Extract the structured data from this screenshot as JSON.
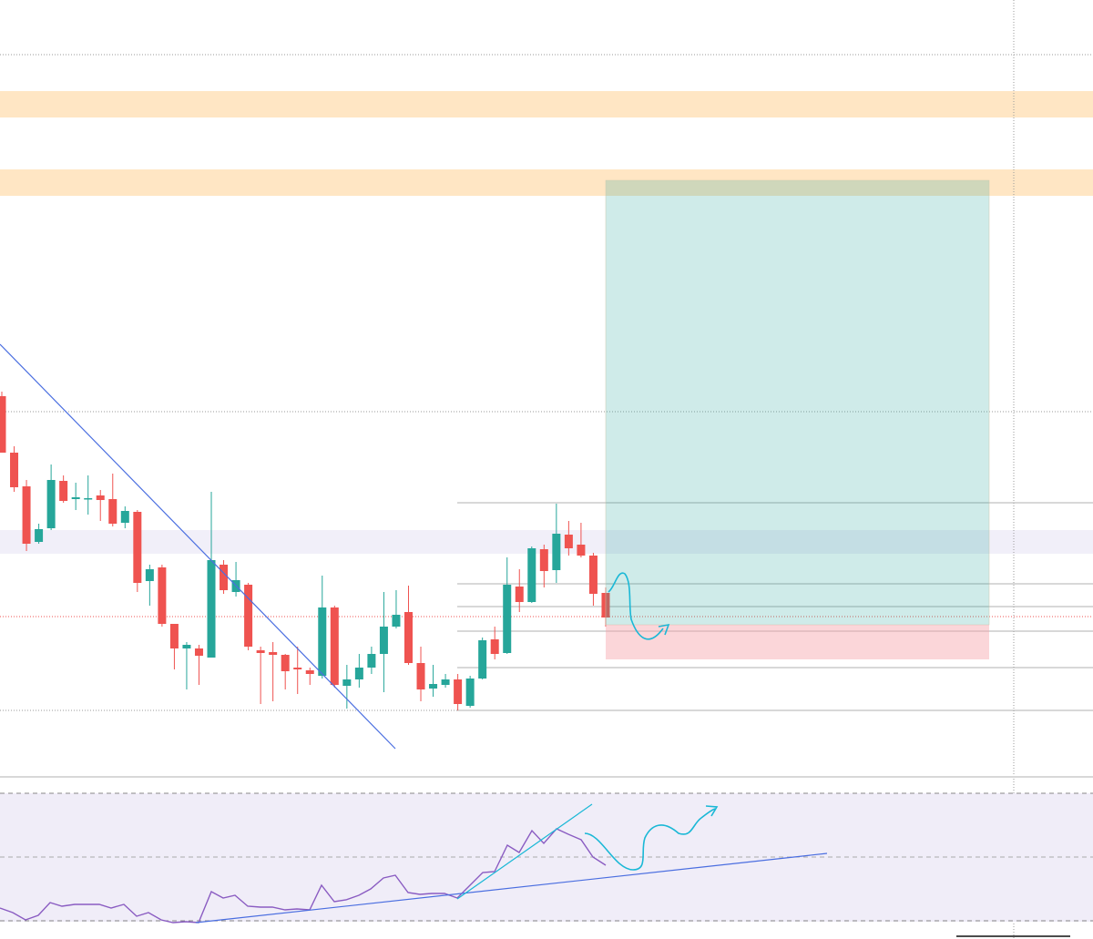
{
  "chart_data": {
    "type": "candlestick",
    "up_color": "#26a69a",
    "down_color": "#ef5350",
    "ylim": [
      0,
      850
    ],
    "open": [
      415,
      353,
      316,
      255,
      270,
      322,
      302,
      302,
      306,
      302,
      276,
      288,
      212,
      227,
      165,
      138,
      138,
      128,
      230,
      200,
      208,
      136,
      134,
      131,
      117,
      114,
      108,
      183,
      97,
      104,
      117,
      132,
      162,
      178,
      122,
      94,
      98,
      104,
      75,
      105,
      148,
      133,
      206,
      189,
      247,
      224,
      263,
      252,
      240,
      199
    ],
    "high": [
      420,
      360,
      323,
      275,
      340,
      328,
      320,
      328,
      312,
      330,
      294,
      290,
      230,
      230,
      165,
      145,
      142,
      310,
      235,
      233,
      210,
      140,
      145,
      132,
      140,
      117,
      218,
      185,
      120,
      132,
      140,
      200,
      202,
      207,
      140,
      120,
      110,
      110,
      108,
      150,
      162,
      238,
      225,
      250,
      252,
      297,
      278,
      276,
      243,
      205
    ],
    "low": [
      353,
      310,
      245,
      253,
      268,
      298,
      290,
      285,
      278,
      272,
      270,
      200,
      185,
      162,
      115,
      93,
      98,
      128,
      198,
      195,
      136,
      77,
      80,
      93,
      88,
      98,
      105,
      95,
      72,
      95,
      110,
      90,
      160,
      120,
      80,
      85,
      95,
      70,
      73,
      104,
      126,
      132,
      178,
      188,
      205,
      210,
      240,
      238,
      185,
      162
    ],
    "close": [
      353,
      315,
      253,
      269,
      323,
      300,
      304,
      303,
      301,
      275,
      289,
      210,
      225,
      165,
      138,
      142,
      130,
      235,
      202,
      213,
      140,
      133,
      131,
      113,
      115,
      110,
      183,
      98,
      104,
      117,
      132,
      162,
      175,
      122,
      93,
      99,
      104,
      77,
      105,
      147,
      132,
      208,
      189,
      248,
      223,
      264,
      248,
      240,
      198,
      172
    ]
  }
}
